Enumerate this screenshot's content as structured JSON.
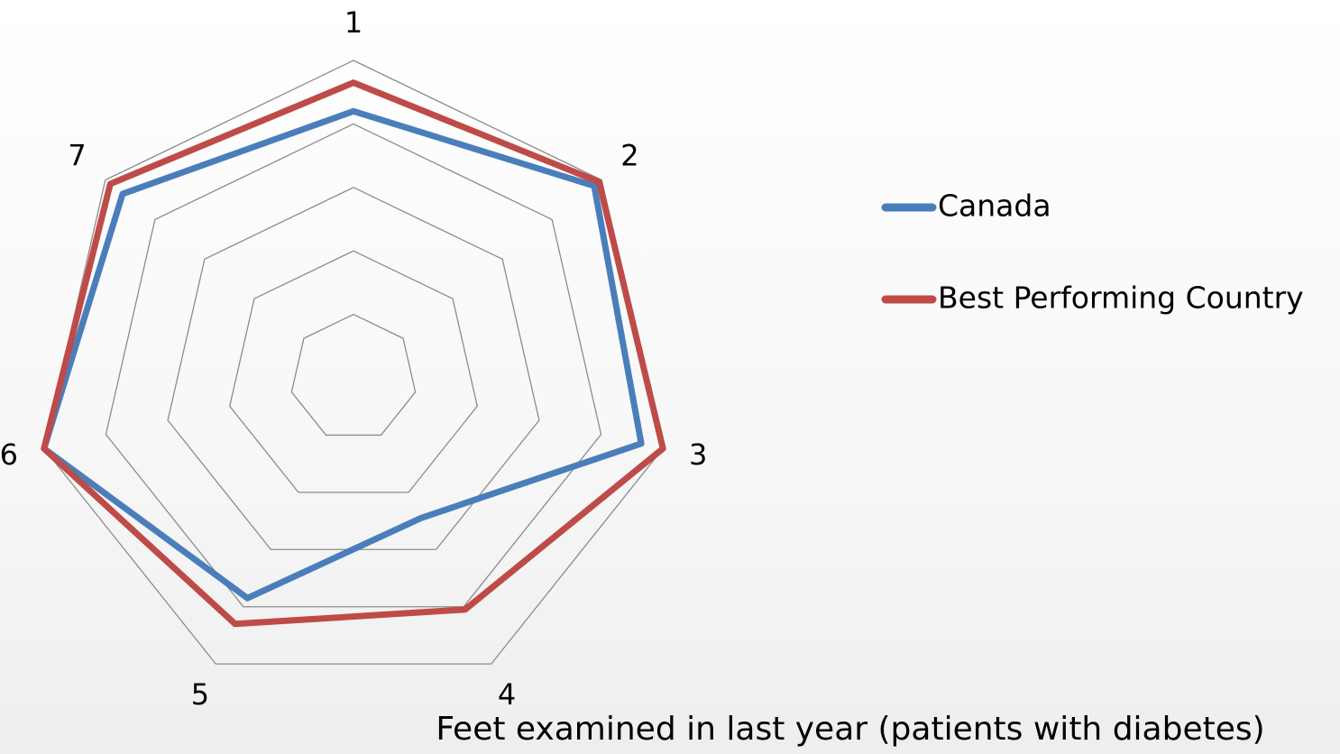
{
  "chart_data": {
    "type": "radar",
    "title": "Feet examined in last year (patients with diabetes)",
    "categories": [
      "1",
      "2",
      "3",
      "4",
      "5",
      "6",
      "7"
    ],
    "series": [
      {
        "name": "Canada",
        "color": "#4a7ebb",
        "values": [
          84,
          97,
          93,
          49,
          77,
          100,
          93
        ]
      },
      {
        "name": "Best Performing Country",
        "color": "#be4b48",
        "values": [
          93,
          99,
          100,
          81,
          86,
          100,
          98
        ]
      }
    ],
    "rlim": [
      0,
      100
    ],
    "rticks": [
      20,
      40,
      60,
      80,
      100
    ],
    "grid": true,
    "legend": "right"
  }
}
